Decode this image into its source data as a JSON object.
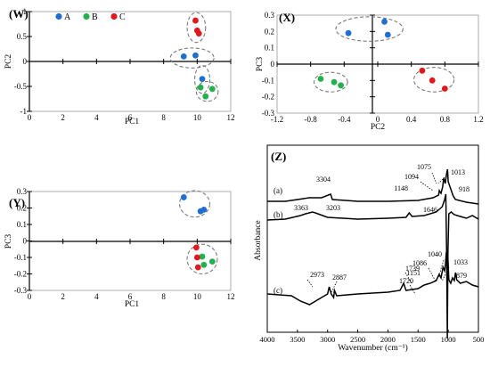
{
  "legend": {
    "items": [
      {
        "label": "A",
        "color": "#1f6fcf"
      },
      {
        "label": "B",
        "color": "#22b14c"
      },
      {
        "label": "C",
        "color": "#e0191f"
      }
    ]
  },
  "chart_data": [
    {
      "type": "scatter",
      "panel": "(W)",
      "xlabel": "PC1",
      "ylabel": "PC2",
      "xlim": [
        0,
        12
      ],
      "ylim": [
        -1,
        1
      ],
      "xticks": [
        "0",
        "2",
        "4",
        "6",
        "8",
        "10",
        "12"
      ],
      "yticks": [
        "1",
        "0.5",
        "0",
        "-0.5",
        "-1"
      ],
      "series": [
        {
          "name": "A",
          "color": "#1f6fcf",
          "x": [
            9.2,
            9.9,
            10.3
          ],
          "y": [
            0.1,
            0.12,
            -0.35
          ]
        },
        {
          "name": "B",
          "color": "#22b14c",
          "x": [
            10.2,
            10.5,
            10.9
          ],
          "y": [
            -0.52,
            -0.7,
            -0.55
          ]
        },
        {
          "name": "C",
          "color": "#e0191f",
          "x": [
            9.9,
            10.0,
            10.1
          ],
          "y": [
            0.82,
            0.62,
            0.56
          ]
        }
      ],
      "groups": [
        {
          "cx": 9.95,
          "cy": 0.68,
          "rx": 0.55,
          "ry": 0.3
        },
        {
          "cx": 9.7,
          "cy": 0.07,
          "rx": 1.3,
          "ry": 0.2
        },
        {
          "cx": 10.3,
          "cy": -0.36,
          "rx": 0.45,
          "ry": 0.28
        },
        {
          "cx": 10.6,
          "cy": -0.6,
          "rx": 0.65,
          "ry": 0.2
        }
      ]
    },
    {
      "type": "scatter",
      "panel": "(X)",
      "xlabel": "PC2",
      "ylabel": "PC3",
      "xlim": [
        -1.2,
        1.2
      ],
      "ylim": [
        -0.3,
        0.3
      ],
      "xticks": [
        "-1.2",
        "-0.8",
        "-0.4",
        "0",
        "0.4",
        "0.8",
        "1.2"
      ],
      "yticks": [
        "0.3",
        "0.2",
        "0.1",
        "0",
        "-0.1",
        "-0.2",
        "-0.3"
      ],
      "series": [
        {
          "name": "A",
          "color": "#1f6fcf",
          "x": [
            -0.35,
            0.08,
            0.12
          ],
          "y": [
            0.19,
            0.26,
            0.18
          ]
        },
        {
          "name": "B",
          "color": "#22b14c",
          "x": [
            -0.68,
            -0.52,
            -0.44
          ],
          "y": [
            -0.09,
            -0.11,
            -0.13
          ]
        },
        {
          "name": "C",
          "color": "#e0191f",
          "x": [
            0.53,
            0.65,
            0.8
          ],
          "y": [
            -0.04,
            -0.1,
            -0.15
          ]
        }
      ],
      "groups": [
        {
          "cx": -0.1,
          "cy": 0.215,
          "rx": 0.4,
          "ry": 0.075
        },
        {
          "cx": -0.56,
          "cy": -0.11,
          "rx": 0.2,
          "ry": 0.06
        },
        {
          "cx": 0.67,
          "cy": -0.095,
          "rx": 0.24,
          "ry": 0.075
        }
      ]
    },
    {
      "type": "scatter",
      "panel": "(Y)",
      "xlabel": "PC1",
      "ylabel": "PC3",
      "xlim": [
        0,
        12
      ],
      "ylim": [
        -0.3,
        0.3
      ],
      "xticks": [
        "0",
        "2",
        "4",
        "6",
        "8",
        "10",
        "12"
      ],
      "yticks": [
        "0.3",
        "0.2",
        "0.1",
        "0",
        "-0.1",
        "-0.2",
        "-0.3"
      ],
      "series": [
        {
          "name": "A",
          "color": "#1f6fcf",
          "x": [
            9.2,
            10.2,
            10.4
          ],
          "y": [
            0.265,
            0.18,
            0.19
          ]
        },
        {
          "name": "B",
          "color": "#22b14c",
          "x": [
            10.3,
            10.4,
            10.9
          ],
          "y": [
            -0.095,
            -0.145,
            -0.125
          ]
        },
        {
          "name": "C",
          "color": "#e0191f",
          "x": [
            9.95,
            10.0,
            10.05
          ],
          "y": [
            -0.04,
            -0.1,
            -0.16
          ]
        }
      ],
      "groups": [
        {
          "cx": 9.85,
          "cy": 0.225,
          "rx": 0.9,
          "ry": 0.08
        },
        {
          "cx": 10.3,
          "cy": -0.11,
          "rx": 0.9,
          "ry": 0.09
        }
      ]
    },
    {
      "type": "line",
      "panel": "(Z)",
      "xlabel": "Wavenumber (cm⁻¹)",
      "ylabel": "Absorbance",
      "xlim": [
        4000,
        500
      ],
      "xticks": [
        "4000",
        "3500",
        "3000",
        "2500",
        "2000",
        "1500",
        "1000",
        "500"
      ],
      "spectra": [
        {
          "name": "(a)",
          "peak_labels": [
            "3304",
            "1148",
            "1094",
            "1075",
            "1013",
            "918"
          ]
        },
        {
          "name": "(b)",
          "peak_labels": [
            "3363",
            "3203",
            "1646"
          ]
        },
        {
          "name": "(c)",
          "peak_labels": [
            "2973",
            "2887",
            "1739",
            "1720",
            "1151",
            "1086",
            "1040",
            "1033",
            "879"
          ]
        }
      ]
    }
  ]
}
